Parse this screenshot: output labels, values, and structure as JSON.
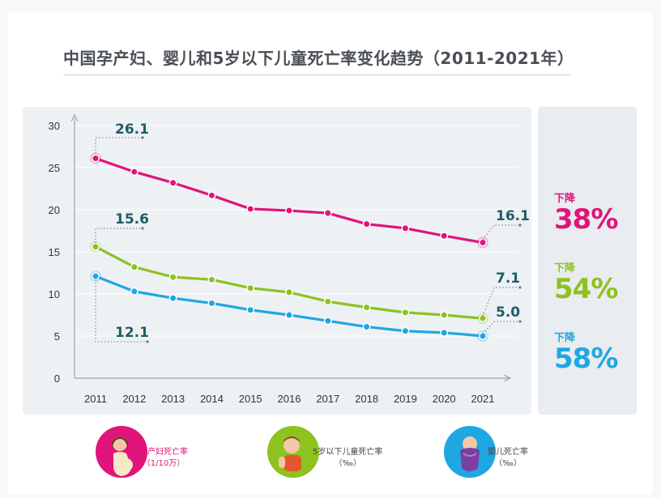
{
  "title": "中国孕产妇、婴儿和5岁以下儿童死亡率变化趋势（2011-2021年）",
  "colors": {
    "maternal": "#e0147a",
    "under5": "#8dc21f",
    "infant": "#1ea7e3",
    "callout": "#1f5d67",
    "axis": "#9aa5ad"
  },
  "chart_data": {
    "type": "line",
    "title": "中国孕产妇、婴儿和5岁以下儿童死亡率变化趋势（2011-2021年）",
    "x": [
      "2011",
      "2012",
      "2013",
      "2014",
      "2015",
      "2016",
      "2017",
      "2018",
      "2019",
      "2020",
      "2021"
    ],
    "ylim": [
      0,
      30
    ],
    "yticks": [
      "0",
      "5",
      "10",
      "15",
      "20",
      "25",
      "30"
    ],
    "grid": true,
    "series": [
      {
        "name": "孕产妇死亡率（1/10万）",
        "values": [
          26.1,
          24.5,
          23.2,
          21.7,
          20.1,
          19.9,
          19.6,
          18.3,
          17.8,
          16.9,
          16.1
        ]
      },
      {
        "name": "5岁以下儿童死亡率（‰）",
        "values": [
          15.6,
          13.2,
          12.0,
          11.7,
          10.7,
          10.2,
          9.1,
          8.4,
          7.8,
          7.5,
          7.1
        ]
      },
      {
        "name": "婴儿死亡率（‰）",
        "values": [
          12.1,
          10.3,
          9.5,
          8.9,
          8.1,
          7.5,
          6.8,
          6.1,
          5.6,
          5.4,
          5.0
        ]
      }
    ],
    "annotations": {
      "maternal_start": "26.1",
      "maternal_end": "16.1",
      "under5_start": "15.6",
      "under5_end": "7.1",
      "infant_start": "12.1",
      "infant_end": "5.0"
    }
  },
  "drops": [
    {
      "label": "下降",
      "value": "38%"
    },
    {
      "label": "下降",
      "value": "54%"
    },
    {
      "label": "下降",
      "value": "58%"
    }
  ],
  "legend": [
    {
      "line1": "孕产妇死亡率",
      "line2": "（1/10万）",
      "icon": "pregnant-woman-icon"
    },
    {
      "line1": "5岁以下儿童死亡率",
      "line2": "（‰）",
      "icon": "child-icon"
    },
    {
      "line1": "婴儿死亡率",
      "line2": "（‰）",
      "icon": "swaddled-baby-icon"
    }
  ]
}
